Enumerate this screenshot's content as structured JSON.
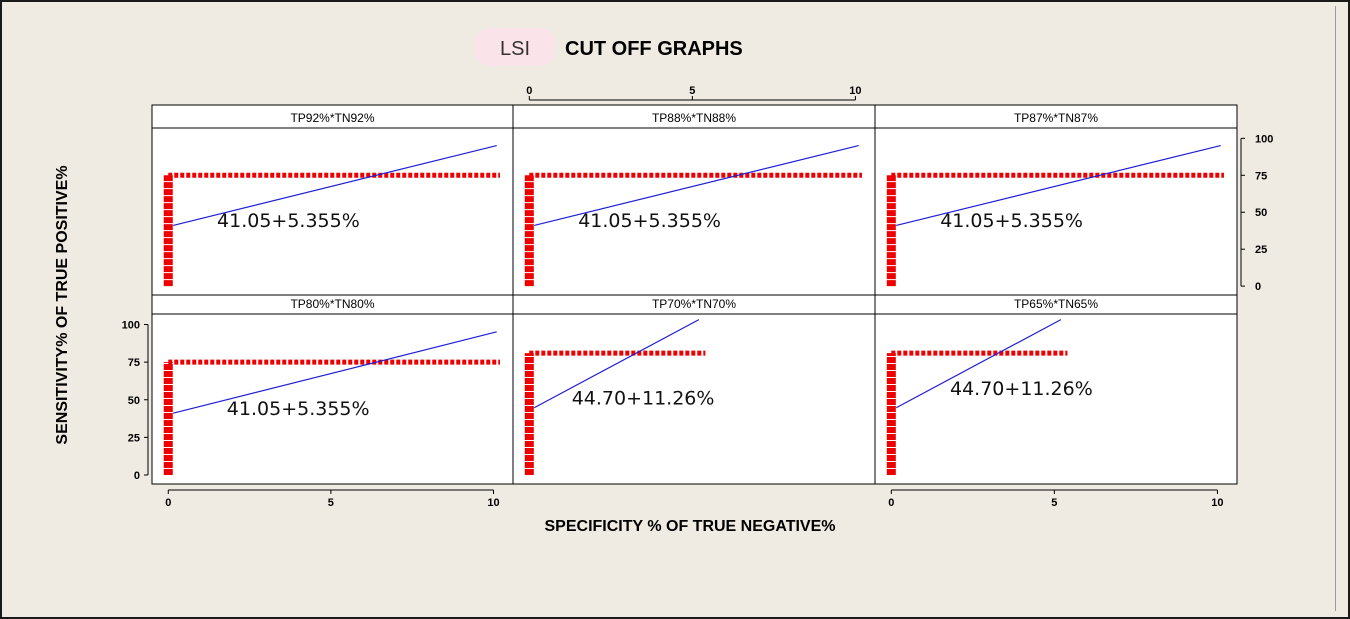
{
  "chart_data": {
    "type": "line",
    "badge": "LSI",
    "title": "CUT OFF GRAPHS",
    "xlabel": "SPECIFICITY % OF TRUE NEGATIVE%",
    "ylabel": "SENSITIVITY% OF TRUE POSITIVE%",
    "xlim": [
      -0.5,
      10.6
    ],
    "ylim": [
      -6,
      107
    ],
    "x_ticks": [
      0,
      5,
      10
    ],
    "y_ticks": [
      0,
      25,
      50,
      75,
      100
    ],
    "colors": {
      "fit_line": "#1f1fd6",
      "cutoff": "#ee0000",
      "panel_bg": "#ffffff",
      "border": "#000000"
    },
    "panels": [
      {
        "label": "TP92%*TN92%",
        "equation": "41.05+5.355%",
        "line": {
          "intercept": 41.05,
          "slope": 5.355,
          "x_end": 10.1
        },
        "cutoff_y": 75,
        "cutoff_x_end": 10.2,
        "equation_pos": {
          "x": 1.5,
          "y": 40
        }
      },
      {
        "label": "TP88%*TN88%",
        "equation": "41.05+5.355%",
        "line": {
          "intercept": 41.05,
          "slope": 5.355,
          "x_end": 10.1
        },
        "cutoff_y": 75,
        "cutoff_x_end": 10.2,
        "equation_pos": {
          "x": 1.5,
          "y": 40
        }
      },
      {
        "label": "TP87%*TN87%",
        "equation": "41.05+5.355%",
        "line": {
          "intercept": 41.05,
          "slope": 5.355,
          "x_end": 10.1
        },
        "cutoff_y": 75,
        "cutoff_x_end": 10.2,
        "equation_pos": {
          "x": 1.5,
          "y": 40
        }
      },
      {
        "label": "TP80%*TN80%",
        "equation": "41.05+5.355%",
        "line": {
          "intercept": 41.05,
          "slope": 5.355,
          "x_end": 10.1
        },
        "cutoff_y": 75,
        "cutoff_x_end": 10.2,
        "equation_pos": {
          "x": 1.8,
          "y": 40
        }
      },
      {
        "label": "TP70%*TN70%",
        "equation": "44.70+11.26%",
        "line": {
          "intercept": 44.7,
          "slope": 11.26,
          "x_end": 5.2
        },
        "cutoff_y": 81,
        "cutoff_x_end": 5.4,
        "equation_pos": {
          "x": 1.3,
          "y": 47
        }
      },
      {
        "label": "TP65%*TN65%",
        "equation": "44.70+11.26%",
        "line": {
          "intercept": 44.7,
          "slope": 11.26,
          "x_end": 5.2
        },
        "cutoff_y": 81,
        "cutoff_x_end": 5.4,
        "equation_pos": {
          "x": 1.8,
          "y": 53
        }
      }
    ]
  }
}
